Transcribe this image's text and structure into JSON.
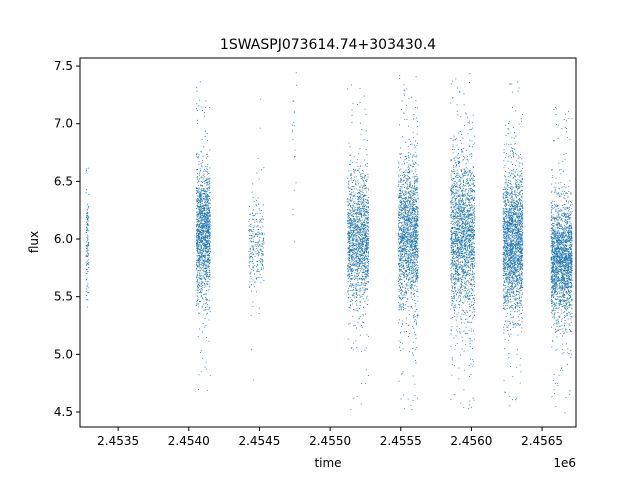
{
  "chart_data": {
    "type": "scatter",
    "title": "1SWASPJ073614.74+303430.4",
    "xlabel": "time",
    "ylabel": "flux",
    "x_offset_label": "1e6",
    "xlim": [
      2453230,
      2456740
    ],
    "ylim": [
      4.37,
      7.57
    ],
    "x_ticks": [
      2.4535,
      2.454,
      2.4545,
      2.455,
      2.4555,
      2.456,
      2.4565
    ],
    "x_tick_labels": [
      "2.4535",
      "2.4540",
      "2.4545",
      "2.4550",
      "2.4555",
      "2.4560",
      "2.4565"
    ],
    "y_ticks": [
      4.5,
      5.0,
      5.5,
      6.0,
      6.5,
      7.0,
      7.5
    ],
    "y_tick_labels": [
      "4.5",
      "5.0",
      "5.5",
      "6.0",
      "6.5",
      "7.0",
      "7.5"
    ],
    "grid": false,
    "marker_color": "#1f77b4",
    "series": [
      {
        "values_summary": "dense point clusters (observing seasons)",
        "clusters": [
          {
            "x_range": [
              2453270,
              2453290
            ],
            "y_center": 6.0,
            "y_spread": 0.25,
            "y_min": 5.3,
            "y_max": 6.7,
            "n": 120
          },
          {
            "x_range": [
              2454050,
              2454150
            ],
            "y_center": 6.05,
            "y_spread": 0.28,
            "y_min": 4.65,
            "y_max": 7.4,
            "n": 1400
          },
          {
            "x_range": [
              2454420,
              2454530
            ],
            "y_center": 5.95,
            "y_spread": 0.2,
            "y_min": 4.7,
            "y_max": 7.25,
            "n": 260
          },
          {
            "x_range": [
              2454730,
              2454760
            ],
            "y_center": 6.8,
            "y_spread": 0.4,
            "y_min": 5.75,
            "y_max": 7.45,
            "n": 20
          },
          {
            "x_range": [
              2455120,
              2455270
            ],
            "y_center": 6.0,
            "y_spread": 0.28,
            "y_min": 4.52,
            "y_max": 7.4,
            "n": 1500
          },
          {
            "x_range": [
              2455480,
              2455620
            ],
            "y_center": 6.05,
            "y_spread": 0.32,
            "y_min": 4.52,
            "y_max": 7.45,
            "n": 1700
          },
          {
            "x_range": [
              2455850,
              2456020
            ],
            "y_center": 6.05,
            "y_spread": 0.35,
            "y_min": 4.52,
            "y_max": 7.45,
            "n": 1900
          },
          {
            "x_range": [
              2456220,
              2456360
            ],
            "y_center": 5.98,
            "y_spread": 0.3,
            "y_min": 4.55,
            "y_max": 7.45,
            "n": 2000
          },
          {
            "x_range": [
              2456560,
              2456710
            ],
            "y_center": 5.82,
            "y_spread": 0.25,
            "y_min": 4.45,
            "y_max": 7.15,
            "n": 2000
          }
        ]
      }
    ]
  }
}
